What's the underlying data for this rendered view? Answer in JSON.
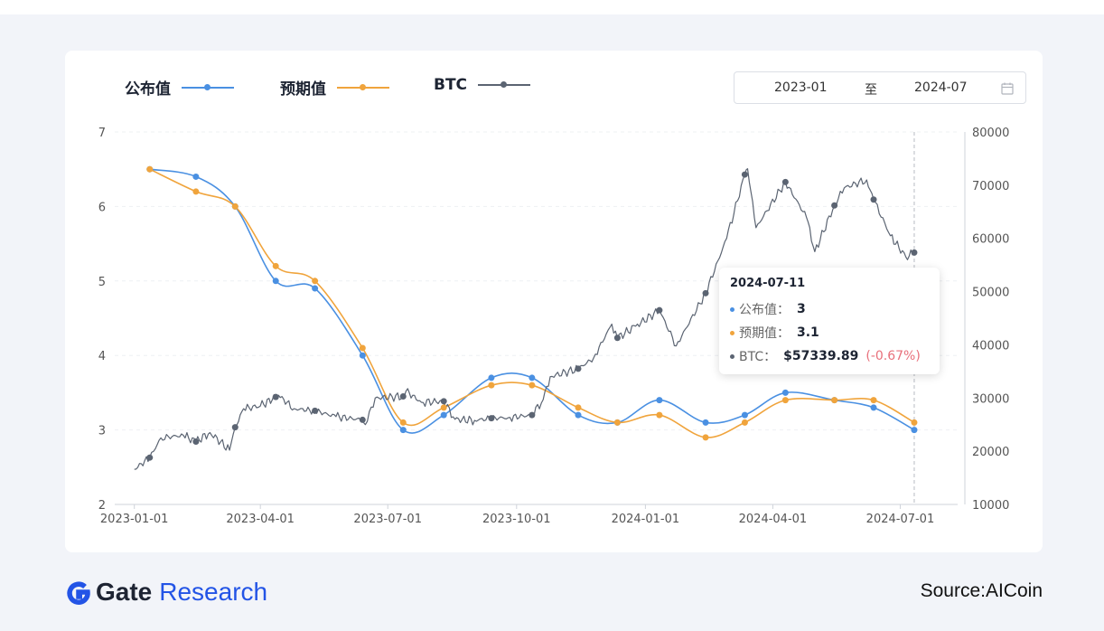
{
  "legend": {
    "series1": "公布值",
    "series2": "预期值",
    "series3": "BTC"
  },
  "date_range": {
    "start": "2023-01",
    "separator": "至",
    "end": "2024-07"
  },
  "tooltip": {
    "date": "2024-07-11",
    "rows": [
      {
        "name": "公布值：",
        "value": "3"
      },
      {
        "name": "预期值：",
        "value": "3.1"
      },
      {
        "name": "BTC：",
        "value": "$57339.89",
        "change": "(-0.67%)"
      }
    ]
  },
  "footer": {
    "brand_gate": "Gate",
    "brand_research": "Research",
    "source": "Source:AICoin"
  },
  "colors": {
    "published": "#4a90e2",
    "expected": "#f0a43c",
    "btc": "#5b6472",
    "change_negative": "#e8707b",
    "brand_blue": "#2354e6"
  },
  "chart_data": {
    "type": "line",
    "x_tick_labels": [
      "2023-01-01",
      "2023-04-01",
      "2023-07-01",
      "2023-10-01",
      "2024-01-01",
      "2024-04-01",
      "2024-07-01"
    ],
    "x_range": [
      "2022-12-18",
      "2024-08-11"
    ],
    "y_left": {
      "ticks": [
        2,
        3,
        4,
        5,
        6,
        7
      ],
      "range": [
        2,
        7
      ]
    },
    "y_right": {
      "ticks": [
        10000,
        20000,
        30000,
        40000,
        50000,
        60000,
        70000,
        80000
      ],
      "range": [
        10000,
        80000
      ]
    },
    "grid": true,
    "crosshair_date": "2024-07-11",
    "series": [
      {
        "name": "公布值",
        "axis": "left",
        "color_key": "published",
        "points": [
          [
            "2023-01-12",
            6.5
          ],
          [
            "2023-02-14",
            6.4
          ],
          [
            "2023-03-14",
            6.0
          ],
          [
            "2023-04-12",
            5.0
          ],
          [
            "2023-05-10",
            4.9
          ],
          [
            "2023-06-13",
            4.0
          ],
          [
            "2023-07-12",
            3.0
          ],
          [
            "2023-08-10",
            3.2
          ],
          [
            "2023-09-13",
            3.7
          ],
          [
            "2023-10-12",
            3.7
          ],
          [
            "2023-11-14",
            3.2
          ],
          [
            "2023-12-12",
            3.1
          ],
          [
            "2024-01-11",
            3.4
          ],
          [
            "2024-02-13",
            3.1
          ],
          [
            "2024-03-12",
            3.2
          ],
          [
            "2024-04-10",
            3.5
          ],
          [
            "2024-05-15",
            3.4
          ],
          [
            "2024-06-12",
            3.3
          ],
          [
            "2024-07-11",
            3.0
          ]
        ]
      },
      {
        "name": "预期值",
        "axis": "left",
        "color_key": "expected",
        "points": [
          [
            "2023-01-12",
            6.5
          ],
          [
            "2023-02-14",
            6.2
          ],
          [
            "2023-03-14",
            6.0
          ],
          [
            "2023-04-12",
            5.2
          ],
          [
            "2023-05-10",
            5.0
          ],
          [
            "2023-06-13",
            4.1
          ],
          [
            "2023-07-12",
            3.1
          ],
          [
            "2023-08-10",
            3.3
          ],
          [
            "2023-09-13",
            3.6
          ],
          [
            "2023-10-12",
            3.6
          ],
          [
            "2023-11-14",
            3.3
          ],
          [
            "2023-12-12",
            3.1
          ],
          [
            "2024-01-11",
            3.2
          ],
          [
            "2024-02-13",
            2.9
          ],
          [
            "2024-03-12",
            3.1
          ],
          [
            "2024-04-10",
            3.4
          ],
          [
            "2024-05-15",
            3.4
          ],
          [
            "2024-06-12",
            3.4
          ],
          [
            "2024-07-11",
            3.1
          ]
        ]
      },
      {
        "name": "BTC",
        "axis": "right",
        "color_key": "btc",
        "points": [
          [
            "2023-01-01",
            16600
          ],
          [
            "2023-01-12",
            18800
          ],
          [
            "2023-01-20",
            22500
          ],
          [
            "2023-02-05",
            23000
          ],
          [
            "2023-02-14",
            21800
          ],
          [
            "2023-02-24",
            23500
          ],
          [
            "2023-03-10",
            20200
          ],
          [
            "2023-03-14",
            24500
          ],
          [
            "2023-03-20",
            28000
          ],
          [
            "2023-04-01",
            28500
          ],
          [
            "2023-04-12",
            30200
          ],
          [
            "2023-04-14",
            30500
          ],
          [
            "2023-04-25",
            28000
          ],
          [
            "2023-05-10",
            27600
          ],
          [
            "2023-05-25",
            26500
          ],
          [
            "2023-06-13",
            25900
          ],
          [
            "2023-06-15",
            25000
          ],
          [
            "2023-06-22",
            30000
          ],
          [
            "2023-07-12",
            30300
          ],
          [
            "2023-07-14",
            31300
          ],
          [
            "2023-07-25",
            29200
          ],
          [
            "2023-08-10",
            29400
          ],
          [
            "2023-08-18",
            26000
          ],
          [
            "2023-09-01",
            25800
          ],
          [
            "2023-09-13",
            26200
          ],
          [
            "2023-09-25",
            26300
          ],
          [
            "2023-10-12",
            26800
          ],
          [
            "2023-10-20",
            29700
          ],
          [
            "2023-10-25",
            34000
          ],
          [
            "2023-11-14",
            35500
          ],
          [
            "2023-11-25",
            37500
          ],
          [
            "2023-12-08",
            43900
          ],
          [
            "2023-12-12",
            41300
          ],
          [
            "2023-12-25",
            43500
          ],
          [
            "2024-01-11",
            46500
          ],
          [
            "2024-01-23",
            39800
          ],
          [
            "2024-02-13",
            49700
          ],
          [
            "2024-02-28",
            60000
          ],
          [
            "2024-03-12",
            72000
          ],
          [
            "2024-03-14",
            73100
          ],
          [
            "2024-03-20",
            62000
          ],
          [
            "2024-04-10",
            70600
          ],
          [
            "2024-04-25",
            64000
          ],
          [
            "2024-05-01",
            57500
          ],
          [
            "2024-05-15",
            66200
          ],
          [
            "2024-05-22",
            69500
          ],
          [
            "2024-06-07",
            71000
          ],
          [
            "2024-06-12",
            67300
          ],
          [
            "2024-06-24",
            60500
          ],
          [
            "2024-07-05",
            56500
          ],
          [
            "2024-07-11",
            57340
          ]
        ]
      }
    ]
  }
}
